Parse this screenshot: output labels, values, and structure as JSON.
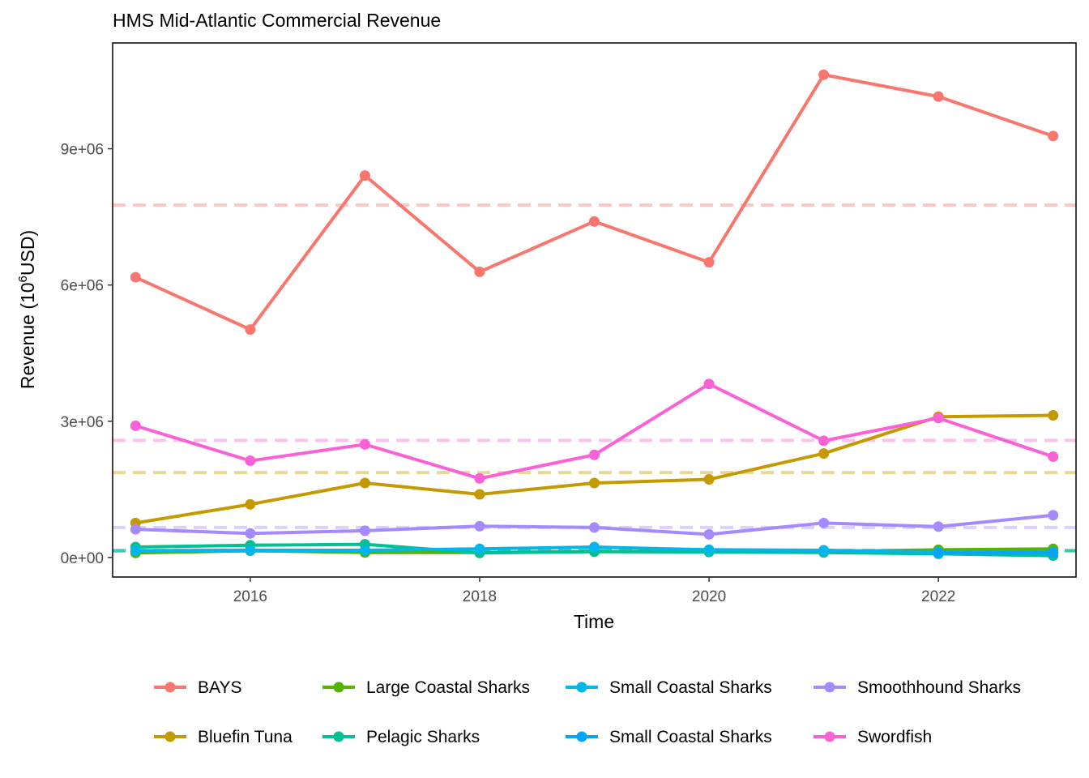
{
  "chart_data": {
    "type": "line",
    "title": "HMS Mid-Atlantic Commercial Revenue",
    "xlabel": "Time",
    "ylabel": {
      "main": "Revenue (10",
      "sup": "6",
      "tail": "USD)"
    },
    "xlim": [
      2014.8,
      2023.2
    ],
    "ylim": [
      -430000,
      11330000
    ],
    "x_ticks": [
      2016,
      2018,
      2020,
      2022
    ],
    "x_tick_labels": [
      "2016",
      "2018",
      "2020",
      "2022"
    ],
    "y_ticks": [
      0,
      3000000,
      6000000,
      9000000
    ],
    "y_tick_labels": [
      "0e+00",
      "3e+06",
      "6e+06",
      "9e+06"
    ],
    "grid": false,
    "legend_position": "bottom",
    "x": [
      2015,
      2016,
      2017,
      2018,
      2019,
      2020,
      2021,
      2022,
      2023
    ],
    "series": [
      {
        "name": "BAYS",
        "color": "#F8766D",
        "values": [
          6170000,
          5020000,
          8410000,
          6290000,
          7400000,
          6500000,
          10630000,
          10150000,
          9280000
        ],
        "mean": 7760000
      },
      {
        "name": "Bluefin Tuna",
        "color": "#C49A00",
        "values": [
          760000,
          1170000,
          1640000,
          1390000,
          1640000,
          1720000,
          2290000,
          3100000,
          3130000
        ],
        "mean": 1870000
      },
      {
        "name": "Large Coastal Sharks",
        "color": "#53B400",
        "values": [
          100000,
          150000,
          110000,
          110000,
          130000,
          130000,
          130000,
          170000,
          190000
        ],
        "mean": 140000
      },
      {
        "name": "Pelagic Sharks",
        "color": "#00C094",
        "values": [
          230000,
          270000,
          290000,
          100000,
          130000,
          120000,
          110000,
          80000,
          40000
        ],
        "mean": 150000
      },
      {
        "name": "Small Coastal  Sharks",
        "color": "#00B6EB",
        "values": [
          150000,
          160000,
          160000,
          190000,
          230000,
          170000,
          160000,
          120000,
          120000
        ],
        "mean": 160000
      },
      {
        "name": "Small Coastal Sharks",
        "color": "#06A4FF",
        "values": [
          null,
          null,
          null,
          null,
          null,
          null,
          null,
          100000,
          100000
        ],
        "mean": null
      },
      {
        "name": "Smoothhound Sharks",
        "color": "#A58AFF",
        "values": [
          620000,
          530000,
          590000,
          690000,
          660000,
          510000,
          760000,
          680000,
          930000
        ],
        "mean": 660000
      },
      {
        "name": "Swordfish",
        "color": "#FB61D7",
        "values": [
          2900000,
          2130000,
          2490000,
          1740000,
          2260000,
          3820000,
          2570000,
          3070000,
          2220000
        ],
        "mean": 2580000
      }
    ]
  }
}
